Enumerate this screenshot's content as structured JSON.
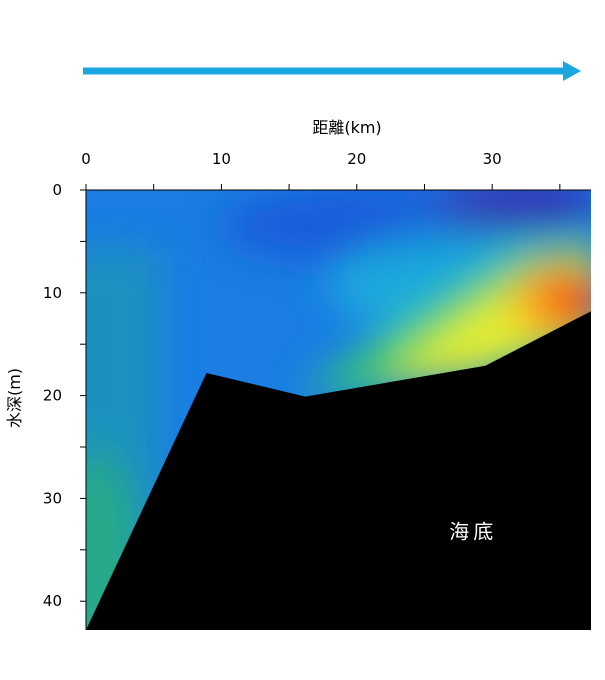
{
  "chart_data": {
    "type": "heatmap",
    "title": "",
    "xlabel": "距離(km)",
    "ylabel": "水深(m)",
    "x_ticks": [
      0,
      10,
      20,
      30
    ],
    "y_ticks": [
      0,
      10,
      20,
      30,
      40
    ],
    "xlim": [
      0,
      37.3
    ],
    "ylim": [
      0,
      42.8
    ],
    "x_axis_position": "top",
    "y_axis_inverted": true,
    "grid": false,
    "legend": "none",
    "direction_arrow": {
      "color": "#1aa7e0",
      "direction": "left-to-right"
    },
    "seabed_profile": {
      "x": [
        0,
        8.9,
        16.2,
        29.5,
        37.3
      ],
      "depth": [
        42.8,
        17.8,
        20.1,
        17.1,
        11.8
      ],
      "fill": "#000000"
    },
    "annotations": [
      {
        "text": "海底",
        "x": 28.6,
        "depth": 33.2
      }
    ]
  }
}
